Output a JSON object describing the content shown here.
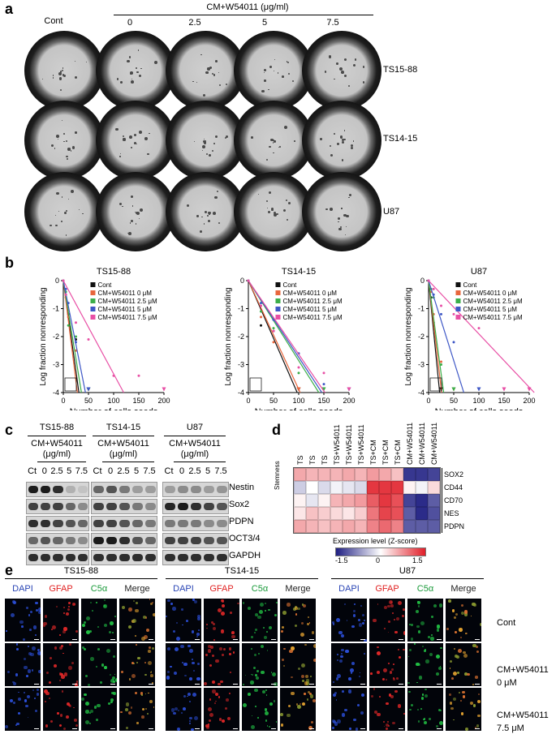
{
  "panel_a": {
    "letter": "a",
    "cont_label": "Cont",
    "treatment_header": "CM+W54011 (μg/ml)",
    "concentrations": [
      "0",
      "2.5",
      "5",
      "7.5"
    ],
    "rows": [
      "TS15-88",
      "TS14-15",
      "U87"
    ]
  },
  "panel_b": {
    "letter": "b",
    "ylabel": "Log fraction nonresponding",
    "xlabel": "Number of cells seeds",
    "legend": [
      "Cont",
      "CM+W54011  0 μM",
      "CM+W54011  2.5 μM",
      "CM+W54011  5 μM",
      "CM+W54011  7.5 μM"
    ],
    "colors": {
      "cont": "#111111",
      "c0": "#e8663c",
      "c25": "#3cae4a",
      "c5": "#3e57c6",
      "c75": "#e84fa5"
    }
  },
  "panel_c": {
    "letter": "c",
    "groups": [
      "TS15-88",
      "TS14-15",
      "U87"
    ],
    "treatment": "CM+W54011",
    "unit": "(μg/ml)",
    "lanes": [
      "Ct",
      "0",
      "2.5",
      "5",
      "7.5"
    ],
    "proteins": [
      "Nestin",
      "Sox2",
      "PDPN",
      "OCT3/4",
      "GAPDH"
    ]
  },
  "panel_d": {
    "letter": "d",
    "columns": [
      "TS",
      "TS",
      "TS",
      "TS+W54011",
      "TS+W54011",
      "TS+W54011",
      "TS+CM",
      "TS+CM",
      "TS+CM",
      "CM+W54011",
      "CM+W54011",
      "CM+W54011"
    ],
    "genes": [
      "SOX2",
      "CD44",
      "CD70",
      "NES",
      "PDPN"
    ],
    "side_label": "Stemness",
    "legend_title": "Expression level  (Z-score)",
    "legend_ticks": [
      "-1.5",
      "0",
      "1.5"
    ],
    "zscores": [
      [
        0.7,
        0.6,
        0.6,
        0.6,
        0.7,
        0.6,
        0.8,
        0.7,
        0.5,
        -1.6,
        -1.6,
        -1.5
      ],
      [
        -0.4,
        0.0,
        -0.3,
        -0.1,
        -0.2,
        -0.3,
        1.6,
        1.6,
        1.6,
        0.1,
        -0.1,
        0.3
      ],
      [
        0.1,
        -0.2,
        0.1,
        0.6,
        0.7,
        0.8,
        1.3,
        1.6,
        1.4,
        -1.5,
        -1.7,
        -1.3
      ],
      [
        0.2,
        0.5,
        0.4,
        0.3,
        0.2,
        0.4,
        1.1,
        1.5,
        1.4,
        -1.3,
        -1.7,
        -1.4
      ],
      [
        0.7,
        0.6,
        0.5,
        0.6,
        0.7,
        0.6,
        1.0,
        1.2,
        1.0,
        -1.3,
        -1.3,
        -1.3
      ]
    ]
  },
  "panel_e": {
    "letter": "e",
    "groups": [
      "TS15-88",
      "TS14-15",
      "U87"
    ],
    "channels": [
      "DAPI",
      "GFAP",
      "C5α",
      "Merge"
    ],
    "channel_colors": [
      "#2a45b5",
      "#e02020",
      "#1a9a3a",
      "#222222"
    ],
    "row_labels": [
      {
        "line1": "Cont",
        "line2": ""
      },
      {
        "line1": "CM+W54011",
        "line2": "0 μM"
      },
      {
        "line1": "CM+W54011",
        "line2": "7.5 μM"
      }
    ]
  },
  "chart_data": [
    {
      "type": "line",
      "title": "TS15-88",
      "xlabel": "Number of cells seeds",
      "ylabel": "Log fraction nonresponding",
      "xlim": [
        0,
        200
      ],
      "ylim": [
        -4,
        0
      ],
      "xticks": [
        0,
        50,
        100,
        150,
        200
      ],
      "yticks": [
        0,
        -1,
        -2,
        -3,
        -4
      ],
      "series": [
        {
          "name": "Cont",
          "line": [
            [
              0,
              0
            ],
            [
              31,
              -4
            ]
          ],
          "points": [
            [
              0,
              0
            ],
            [
              5,
              -0.5
            ],
            [
              10,
              -1.2
            ],
            [
              25,
              -2.1
            ],
            [
              50,
              -4
            ]
          ]
        },
        {
          "name": "CM+W54011  0 μM",
          "line": [
            [
              0,
              0
            ],
            [
              28,
              -4
            ]
          ],
          "points": [
            [
              0,
              0
            ],
            [
              5,
              -0.6
            ],
            [
              10,
              -1.3
            ],
            [
              25,
              -2.5
            ],
            [
              50,
              -4
            ]
          ]
        },
        {
          "name": "CM+W54011  2.5 μM",
          "line": [
            [
              0,
              0
            ],
            [
              36,
              -4
            ]
          ],
          "points": [
            [
              0,
              0
            ],
            [
              5,
              -0.4
            ],
            [
              10,
              -1.6
            ],
            [
              25,
              -2.0
            ],
            [
              50,
              -4
            ]
          ]
        },
        {
          "name": "CM+W54011  5 μM",
          "line": [
            [
              0,
              0
            ],
            [
              44,
              -4
            ]
          ],
          "points": [
            [
              0,
              0
            ],
            [
              5,
              -0.3
            ],
            [
              10,
              -0.8
            ],
            [
              25,
              -2.2
            ],
            [
              50,
              -4
            ]
          ]
        },
        {
          "name": "CM+W54011  7.5 μM",
          "line": [
            [
              0,
              0
            ],
            [
              120,
              -4
            ]
          ],
          "points": [
            [
              0,
              0
            ],
            [
              5,
              -0.5
            ],
            [
              25,
              -1.5
            ],
            [
              50,
              -2.1
            ],
            [
              100,
              -3.4
            ],
            [
              150,
              -3.4
            ],
            [
              200,
              -4
            ]
          ]
        }
      ]
    },
    {
      "type": "line",
      "title": "TS14-15",
      "xlabel": "Number of cells seeds",
      "ylabel": "Log fraction nonresponding",
      "xlim": [
        0,
        200
      ],
      "ylim": [
        -4,
        0
      ],
      "xticks": [
        0,
        50,
        100,
        150,
        200
      ],
      "yticks": [
        0,
        -1,
        -2,
        -3,
        -4
      ],
      "series": [
        {
          "name": "Cont",
          "line": [
            [
              0,
              0
            ],
            [
              97,
              -4
            ]
          ],
          "points": [
            [
              0,
              0
            ],
            [
              25,
              -1.6
            ],
            [
              50,
              -1.8
            ],
            [
              100,
              -4
            ]
          ]
        },
        {
          "name": "CM+W54011  0 μM",
          "line": [
            [
              0,
              0
            ],
            [
              103,
              -4
            ]
          ],
          "points": [
            [
              0,
              0
            ],
            [
              25,
              -1.3
            ],
            [
              50,
              -2.2
            ],
            [
              100,
              -4
            ]
          ]
        },
        {
          "name": "CM+W54011  2.5 μM",
          "line": [
            [
              0,
              0
            ],
            [
              140,
              -4
            ]
          ],
          "points": [
            [
              0,
              0
            ],
            [
              25,
              -1.1
            ],
            [
              50,
              -1.7
            ],
            [
              100,
              -3.3
            ],
            [
              150,
              -4
            ]
          ]
        },
        {
          "name": "CM+W54011  5 μM",
          "line": [
            [
              0,
              0
            ],
            [
              146,
              -4
            ]
          ],
          "points": [
            [
              0,
              0
            ],
            [
              25,
              -0.8
            ],
            [
              50,
              -1.4
            ],
            [
              100,
              -2.6
            ],
            [
              150,
              -3.7
            ],
            [
              200,
              -4
            ]
          ]
        },
        {
          "name": "CM+W54011  7.5 μM",
          "line": [
            [
              0,
              0
            ],
            [
              152,
              -4
            ]
          ],
          "points": [
            [
              0,
              0
            ],
            [
              25,
              -0.9
            ],
            [
              50,
              -1.8
            ],
            [
              100,
              -3.1
            ],
            [
              150,
              -3.3
            ],
            [
              200,
              -4
            ]
          ]
        }
      ]
    },
    {
      "type": "line",
      "title": "U87",
      "xlabel": "Number of cells seeds",
      "ylabel": "Log fraction nonresponding",
      "xlim": [
        0,
        200
      ],
      "ylim": [
        -4,
        0
      ],
      "xticks": [
        0,
        50,
        100,
        150,
        200
      ],
      "yticks": [
        0,
        -1,
        -2,
        -3,
        -4
      ],
      "series": [
        {
          "name": "Cont",
          "line": [
            [
              0,
              0
            ],
            [
              22,
              -4
            ]
          ],
          "points": [
            [
              0,
              0
            ],
            [
              5,
              -0.6
            ],
            [
              10,
              -1.5
            ],
            [
              25,
              -4
            ]
          ]
        },
        {
          "name": "CM+W54011  0 μM",
          "line": [
            [
              0,
              0
            ],
            [
              26,
              -4
            ]
          ],
          "points": [
            [
              0,
              0
            ],
            [
              5,
              -0.4
            ],
            [
              10,
              -1.2
            ],
            [
              25,
              -2.9
            ],
            [
              50,
              -4
            ]
          ]
        },
        {
          "name": "CM+W54011  2.5 μM",
          "line": [
            [
              0,
              0
            ],
            [
              30,
              -4
            ]
          ],
          "points": [
            [
              0,
              0
            ],
            [
              5,
              -0.3
            ],
            [
              10,
              -0.6
            ],
            [
              25,
              -3.0
            ],
            [
              50,
              -4
            ]
          ]
        },
        {
          "name": "CM+W54011  5 μM",
          "line": [
            [
              0,
              0
            ],
            [
              70,
              -4
            ]
          ],
          "points": [
            [
              0,
              0
            ],
            [
              10,
              -0.5
            ],
            [
              25,
              -1.2
            ],
            [
              50,
              -2.2
            ],
            [
              100,
              -4
            ]
          ]
        },
        {
          "name": "CM+W54011  7.5 μM",
          "line": [
            [
              0,
              0
            ],
            [
              210,
              -4
            ]
          ],
          "points": [
            [
              0,
              0
            ],
            [
              10,
              -0.3
            ],
            [
              25,
              -0.9
            ],
            [
              50,
              -1.2
            ],
            [
              100,
              -1.7
            ],
            [
              150,
              -4
            ],
            [
              200,
              -4
            ]
          ]
        }
      ]
    },
    {
      "type": "heatmap",
      "columns": [
        "TS",
        "TS",
        "TS",
        "TS+W54011",
        "TS+W54011",
        "TS+W54011",
        "TS+CM",
        "TS+CM",
        "TS+CM",
        "CM+W54011",
        "CM+W54011",
        "CM+W54011"
      ],
      "rows": [
        "SOX2",
        "CD44",
        "CD70",
        "NES",
        "PDPN"
      ],
      "colorbar": {
        "title": "Expression level  (Z-score)",
        "range": [
          -1.5,
          1.5
        ]
      }
    }
  ]
}
